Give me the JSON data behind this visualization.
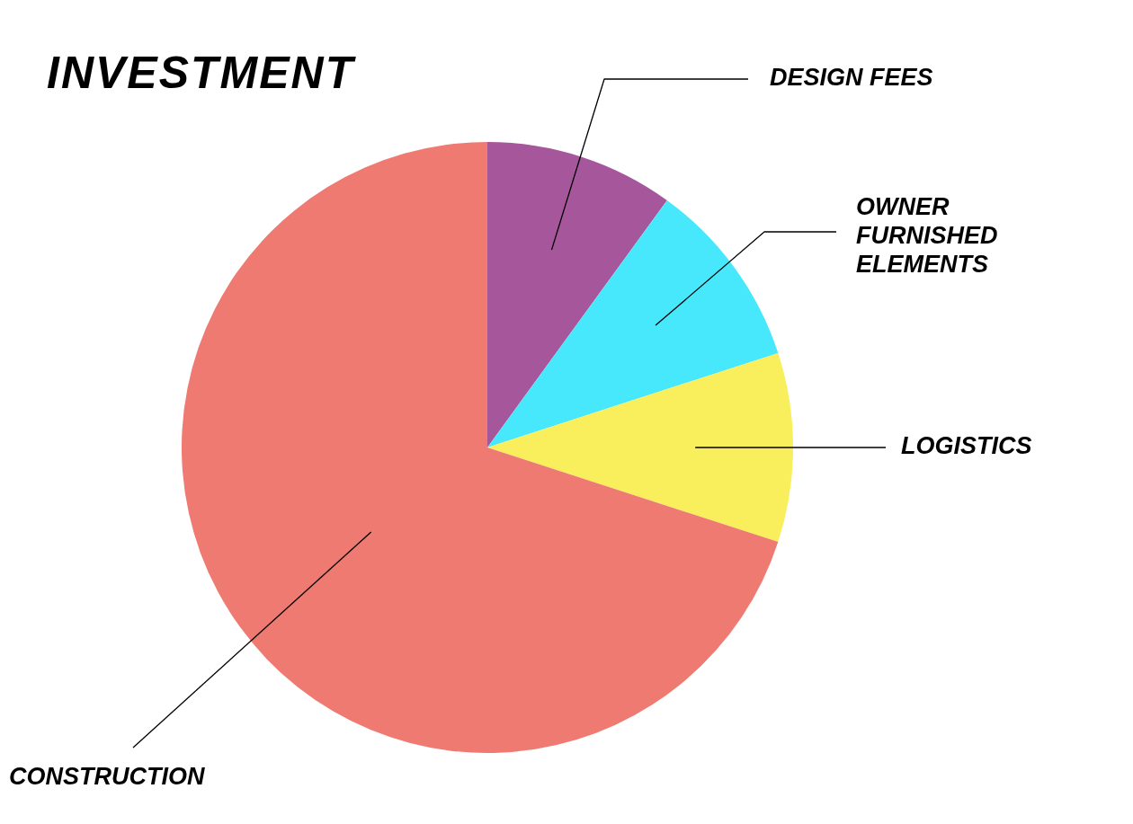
{
  "chart_data": {
    "type": "pie",
    "title": "INVESTMENT",
    "categories": [
      "DESIGN FEES",
      "OWNER FURNISHED ELEMENTS",
      "LOGISTICS",
      "CONSTRUCTION"
    ],
    "values": [
      10,
      10,
      10,
      70
    ],
    "colors": [
      "#a6579b",
      "#48e8fc",
      "#f9ef5d",
      "#ef7a72"
    ]
  }
}
